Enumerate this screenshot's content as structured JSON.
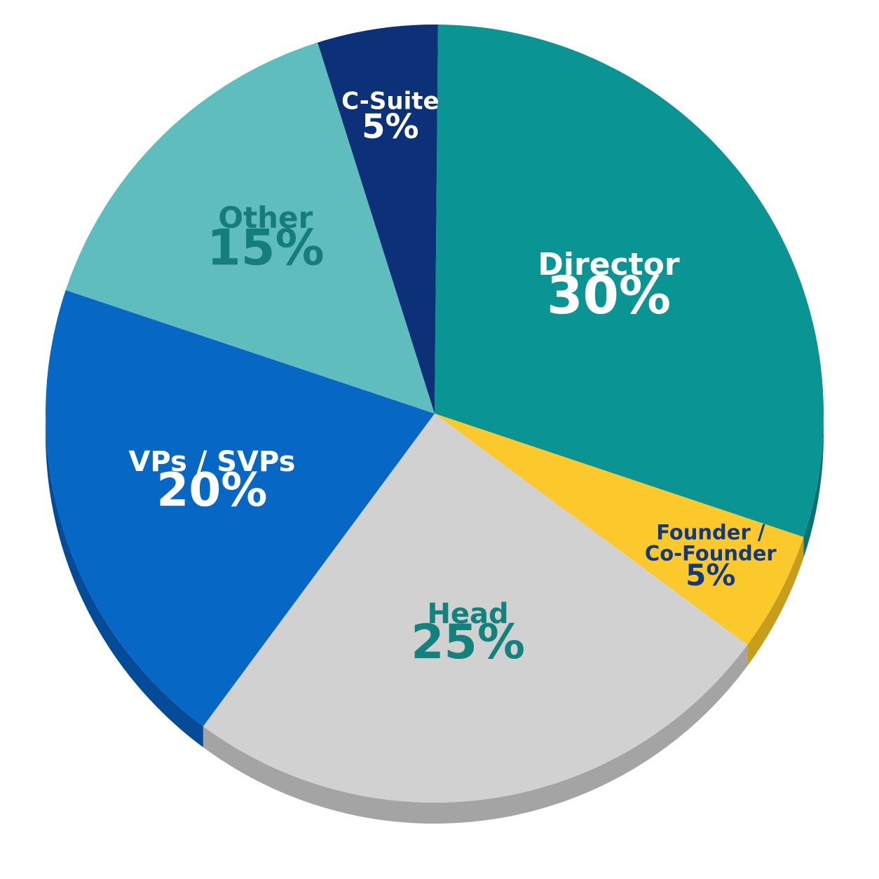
{
  "chart_data": {
    "type": "pie",
    "title": "",
    "slices": [
      {
        "name": "Director",
        "label_lines": [
          "Director"
        ],
        "value": 30,
        "value_label": "30%",
        "color": "#0a9494",
        "side_color": "#067373",
        "text_color": "#ffffff"
      },
      {
        "name": "Founder / Co-Founder",
        "label_lines": [
          "Founder /",
          "Co-Founder"
        ],
        "value": 5,
        "value_label": "5%",
        "color": "#fbc92c",
        "side_color": "#c89d19",
        "text_color": "#143a7c"
      },
      {
        "name": "Head",
        "label_lines": [
          "Head"
        ],
        "value": 25,
        "value_label": "25%",
        "color": "#d1d1d1",
        "side_color": "#a4a4a4",
        "text_color": "#13827d"
      },
      {
        "name": "VPs / SVPs",
        "label_lines": [
          "VPs / SVPs"
        ],
        "value": 20,
        "value_label": "20%",
        "color": "#0667c4",
        "side_color": "#044c98",
        "text_color": "#ffffff"
      },
      {
        "name": "Other",
        "label_lines": [
          "Other"
        ],
        "value": 15,
        "value_label": "15%",
        "color": "#5fbebd",
        "side_color": "#3f9897",
        "text_color": "#157e7a"
      },
      {
        "name": "C-Suite",
        "label_lines": [
          "C-Suite"
        ],
        "value": 5,
        "value_label": "5%",
        "color": "#0c3178",
        "side_color": "#082258",
        "text_color": "#ffffff"
      }
    ]
  }
}
